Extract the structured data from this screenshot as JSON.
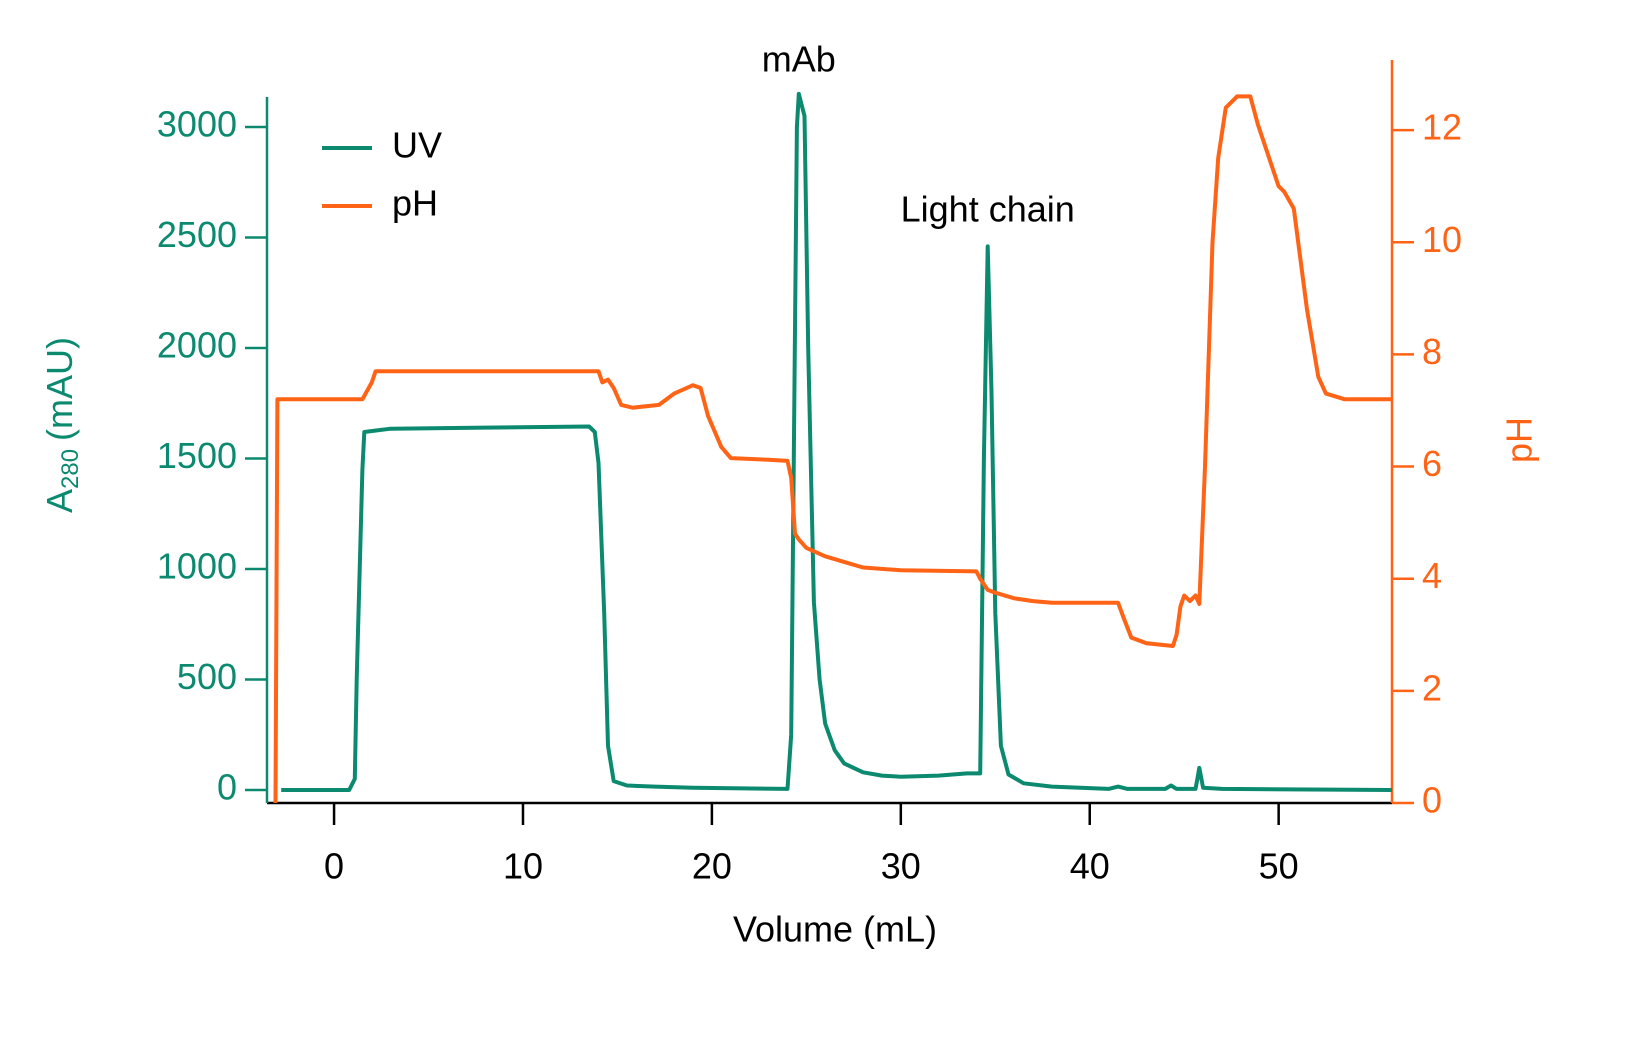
{
  "chart_data": {
    "type": "line",
    "xlabel": "Volume (mL)",
    "ylabel": "A",
    "ylabel_subscript": "280",
    "ylabel_suffix": "(mAU)",
    "y2label": "pH",
    "xlim": [
      -3.55,
      56
    ],
    "xticks": [
      0,
      10,
      20,
      30,
      40,
      50
    ],
    "ylim": [
      -59,
      3136
    ],
    "yticks": [
      0,
      500,
      1000,
      1500,
      2000,
      2500,
      3000
    ],
    "y2lim": [
      0,
      13.25
    ],
    "y2ticks": [
      0,
      2,
      4,
      6,
      8,
      10,
      12
    ],
    "left_axis_color": "#0b8a6f",
    "right_axis_color": "#ff6316",
    "legend": "upper left",
    "annotations": [
      {
        "text": "mAb",
        "x": 24.6,
        "y": 3294
      },
      {
        "text": "Light chain",
        "x": 34.6,
        "y": 2615
      }
    ],
    "series": [
      {
        "name": "UV",
        "color": "#0b8a6f",
        "x": [
          -2.8,
          0.8,
          1.1,
          1.2,
          1.5,
          1.6,
          3,
          8,
          13.5,
          13.8,
          14,
          14.3,
          14.5,
          14.8,
          15.5,
          17,
          19,
          24,
          24.2,
          24.5,
          24.6,
          24.9,
          25.1,
          25.4,
          25.7,
          26,
          26.5,
          27,
          28,
          29,
          30,
          32,
          33.5,
          34.2,
          34.4,
          34.6,
          34.8,
          35,
          35.3,
          35.7,
          36.5,
          38,
          41,
          41.5,
          42,
          44,
          44.3,
          44.6,
          45.6,
          45.7,
          45.8,
          46,
          47,
          56
        ],
        "values": [
          0,
          0,
          50,
          500,
          1450,
          1620,
          1635,
          1640,
          1645,
          1620,
          1480,
          800,
          200,
          40,
          20,
          15,
          10,
          5,
          250,
          3000,
          3150,
          3050,
          2000,
          850,
          500,
          300,
          180,
          120,
          80,
          65,
          60,
          65,
          75,
          75,
          1500,
          2460,
          1800,
          800,
          200,
          70,
          30,
          15,
          5,
          15,
          5,
          5,
          20,
          5,
          5,
          50,
          100,
          10,
          5,
          0
        ]
      },
      {
        "name": "pH",
        "color": "#ff6316",
        "axis": "y2",
        "x": [
          -3.1,
          -3,
          1.5,
          2,
          2.2,
          5,
          14,
          14.2,
          14.5,
          14.8,
          15.2,
          15.8,
          17.2,
          18,
          19,
          19.4,
          19.8,
          20.5,
          21,
          23,
          24,
          24.2,
          24.4,
          24.6,
          25,
          26,
          27,
          28,
          30,
          34,
          34.2,
          34.6,
          35,
          36,
          37,
          38,
          41.5,
          41.8,
          42.2,
          43,
          44.4,
          44.6,
          44.8,
          45,
          45.3,
          45.6,
          45.8,
          46.1,
          46.5,
          46.8,
          47.2,
          47.8,
          48.5,
          48.9,
          49.3,
          50,
          50.3,
          50.8,
          51.5,
          52.1,
          52.5,
          53.5,
          56
        ],
        "values": [
          0,
          7.2,
          7.2,
          7.5,
          7.7,
          7.7,
          7.7,
          7.5,
          7.55,
          7.4,
          7.1,
          7.05,
          7.1,
          7.3,
          7.45,
          7.4,
          6.9,
          6.35,
          6.15,
          6.12,
          6.1,
          5.8,
          4.8,
          4.7,
          4.55,
          4.4,
          4.3,
          4.2,
          4.15,
          4.13,
          4.0,
          3.8,
          3.75,
          3.65,
          3.6,
          3.57,
          3.57,
          3.3,
          2.95,
          2.85,
          2.8,
          3.0,
          3.5,
          3.7,
          3.6,
          3.7,
          3.55,
          6,
          10,
          11.5,
          12.4,
          12.6,
          12.6,
          12.1,
          11.7,
          11.0,
          10.9,
          10.6,
          8.8,
          7.6,
          7.3,
          7.2,
          7.2
        ]
      }
    ]
  }
}
